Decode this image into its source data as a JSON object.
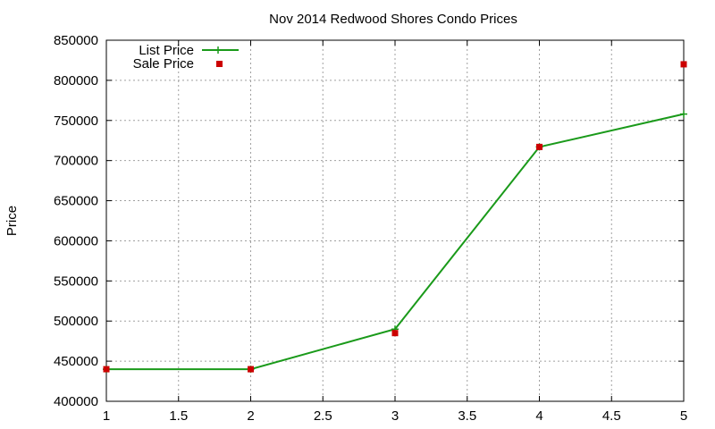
{
  "chart_data": {
    "type": "line",
    "title": "Nov 2014 Redwood Shores Condo Prices",
    "xlabel": "",
    "ylabel": "Price",
    "xlim": [
      1,
      5
    ],
    "ylim": [
      400000,
      850000
    ],
    "xticks": [
      "1",
      "1.5",
      "2",
      "2.5",
      "3",
      "3.5",
      "4",
      "4.5",
      "5"
    ],
    "yticks": [
      "400000",
      "450000",
      "500000",
      "550000",
      "600000",
      "650000",
      "700000",
      "750000",
      "800000",
      "850000"
    ],
    "grid": true,
    "legend_position": "top-left",
    "series": [
      {
        "name": "List Price",
        "style": "line with plus markers",
        "color": "#1a9a1a",
        "x": [
          1,
          2,
          3,
          4,
          5
        ],
        "y": [
          440000,
          440000,
          490000,
          717000,
          758000
        ]
      },
      {
        "name": "Sale Price",
        "style": "square markers",
        "color": "#cc0000",
        "x": [
          1,
          2,
          3,
          4,
          5
        ],
        "y": [
          440000,
          440000,
          485000,
          717000,
          820000
        ]
      }
    ]
  }
}
